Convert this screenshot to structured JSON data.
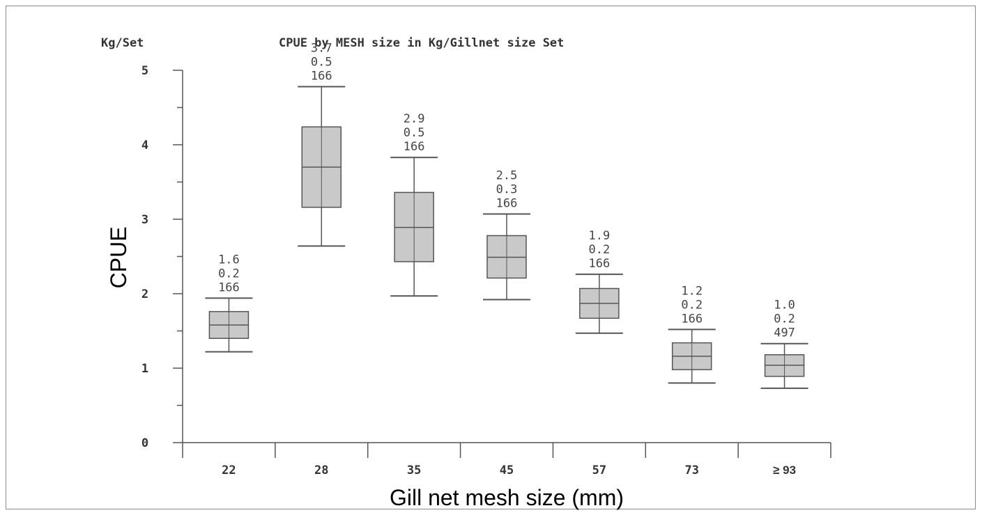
{
  "chart_data": {
    "type": "box",
    "title": "CPUE by MESH size in Kg/Gillnet size Set",
    "y_unit_label": "Kg/Set",
    "ylabel": "CPUE",
    "xlabel": "Gill net mesh size (mm)",
    "ylim": [
      0,
      5
    ],
    "yticks": [
      0,
      1,
      2,
      3,
      4,
      5
    ],
    "grid": false,
    "categories": [
      "22",
      "28",
      "35",
      "45",
      "57",
      "73",
      "≥ 93"
    ],
    "boxes": [
      {
        "category": "22",
        "whisker_low": 1.22,
        "q1": 1.4,
        "median": 1.58,
        "q3": 1.76,
        "whisker_high": 1.94,
        "labels": [
          "1.6",
          "0.2",
          "166"
        ]
      },
      {
        "category": "28",
        "whisker_low": 2.64,
        "q1": 3.16,
        "median": 3.7,
        "q3": 4.24,
        "whisker_high": 4.78,
        "labels": [
          "3.7",
          "0.5",
          "166"
        ]
      },
      {
        "category": "35",
        "whisker_low": 1.97,
        "q1": 2.43,
        "median": 2.89,
        "q3": 3.36,
        "whisker_high": 3.83,
        "labels": [
          "2.9",
          "0.5",
          "166"
        ]
      },
      {
        "category": "45",
        "whisker_low": 1.92,
        "q1": 2.21,
        "median": 2.49,
        "q3": 2.78,
        "whisker_high": 3.07,
        "labels": [
          "2.5",
          "0.3",
          "166"
        ]
      },
      {
        "category": "57",
        "whisker_low": 1.47,
        "q1": 1.67,
        "median": 1.87,
        "q3": 2.07,
        "whisker_high": 2.26,
        "labels": [
          "1.9",
          "0.2",
          "166"
        ]
      },
      {
        "category": "73",
        "whisker_low": 0.8,
        "q1": 0.98,
        "median": 1.16,
        "q3": 1.34,
        "whisker_high": 1.52,
        "labels": [
          "1.2",
          "0.2",
          "166"
        ]
      },
      {
        "category": "≥ 93",
        "whisker_low": 0.73,
        "q1": 0.89,
        "median": 1.04,
        "q3": 1.18,
        "whisker_high": 1.33,
        "labels": [
          "1.0",
          "0.2",
          "497"
        ]
      }
    ],
    "colors": {
      "box_fill": "#c9c9c9",
      "stroke": "#555555",
      "label_text": "#444444"
    }
  }
}
